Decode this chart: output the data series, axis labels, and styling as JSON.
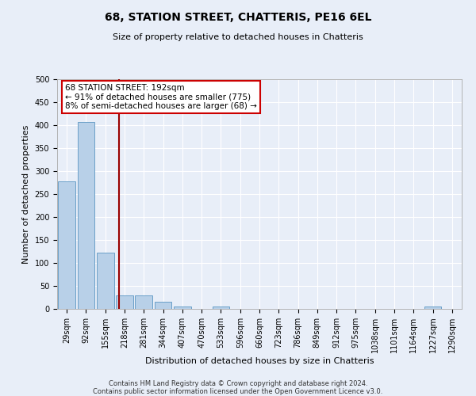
{
  "title": "68, STATION STREET, CHATTERIS, PE16 6EL",
  "subtitle": "Size of property relative to detached houses in Chatteris",
  "xlabel": "Distribution of detached houses by size in Chatteris",
  "ylabel": "Number of detached properties",
  "footer_line1": "Contains HM Land Registry data © Crown copyright and database right 2024.",
  "footer_line2": "Contains public sector information licensed under the Open Government Licence v3.0.",
  "bar_color": "#b8d0e8",
  "bar_edge_color": "#6aa0c8",
  "vline_color": "#990000",
  "annotation_box_color": "#cc0000",
  "categories": [
    "29sqm",
    "92sqm",
    "155sqm",
    "218sqm",
    "281sqm",
    "344sqm",
    "407sqm",
    "470sqm",
    "533sqm",
    "596sqm",
    "660sqm",
    "723sqm",
    "786sqm",
    "849sqm",
    "912sqm",
    "975sqm",
    "1038sqm",
    "1101sqm",
    "1164sqm",
    "1227sqm",
    "1290sqm"
  ],
  "values": [
    277,
    407,
    122,
    29,
    29,
    15,
    6,
    0,
    6,
    0,
    0,
    0,
    0,
    0,
    0,
    0,
    0,
    0,
    0,
    6,
    0
  ],
  "vline_position": 2.72,
  "annotation_text": "68 STATION STREET: 192sqm\n← 91% of detached houses are smaller (775)\n8% of semi-detached houses are larger (68) →",
  "ylim": [
    0,
    500
  ],
  "yticks": [
    0,
    50,
    100,
    150,
    200,
    250,
    300,
    350,
    400,
    450,
    500
  ],
  "background_color": "#e8eef8",
  "plot_background": "#e8eef8",
  "grid_color": "#ffffff",
  "title_fontsize": 10,
  "subtitle_fontsize": 8,
  "ylabel_fontsize": 8,
  "xlabel_fontsize": 8,
  "tick_fontsize": 7,
  "footer_fontsize": 6
}
